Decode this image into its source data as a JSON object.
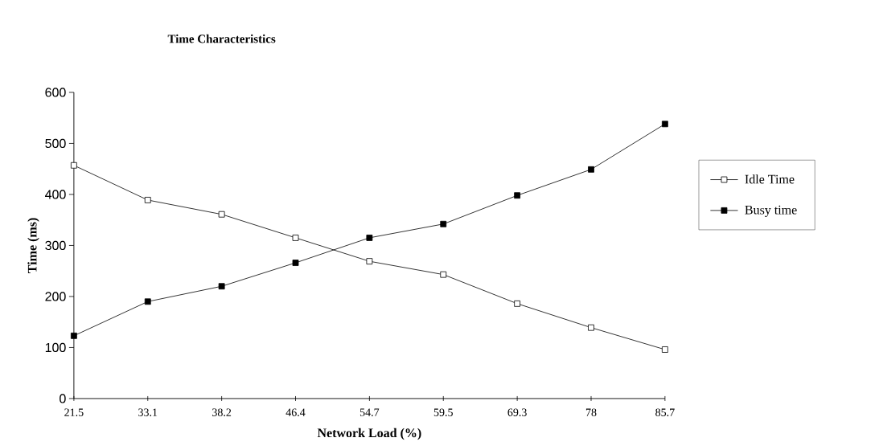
{
  "chart_data": {
    "type": "line",
    "title": "Time Characteristics",
    "xlabel": "Network Load (%)",
    "ylabel": "Time (ms)",
    "categories": [
      "21.5",
      "33.1",
      "38.2",
      "46.4",
      "54.7",
      "59.5",
      "69.3",
      "78",
      "85.7"
    ],
    "series": [
      {
        "name": "Idle Time",
        "color": "#000000",
        "values": [
          457,
          389,
          361,
          315,
          269,
          243,
          186,
          139,
          96
        ]
      },
      {
        "name": "Busy time",
        "color": "#000000",
        "values": [
          123,
          190,
          220,
          266,
          315,
          342,
          398,
          449,
          538
        ]
      }
    ],
    "ylim": [
      0,
      600
    ],
    "yticks": [
      0,
      100,
      200,
      300,
      400,
      500,
      600
    ],
    "grid": false,
    "legend": "right",
    "marker": "square",
    "line_style": "solid"
  }
}
